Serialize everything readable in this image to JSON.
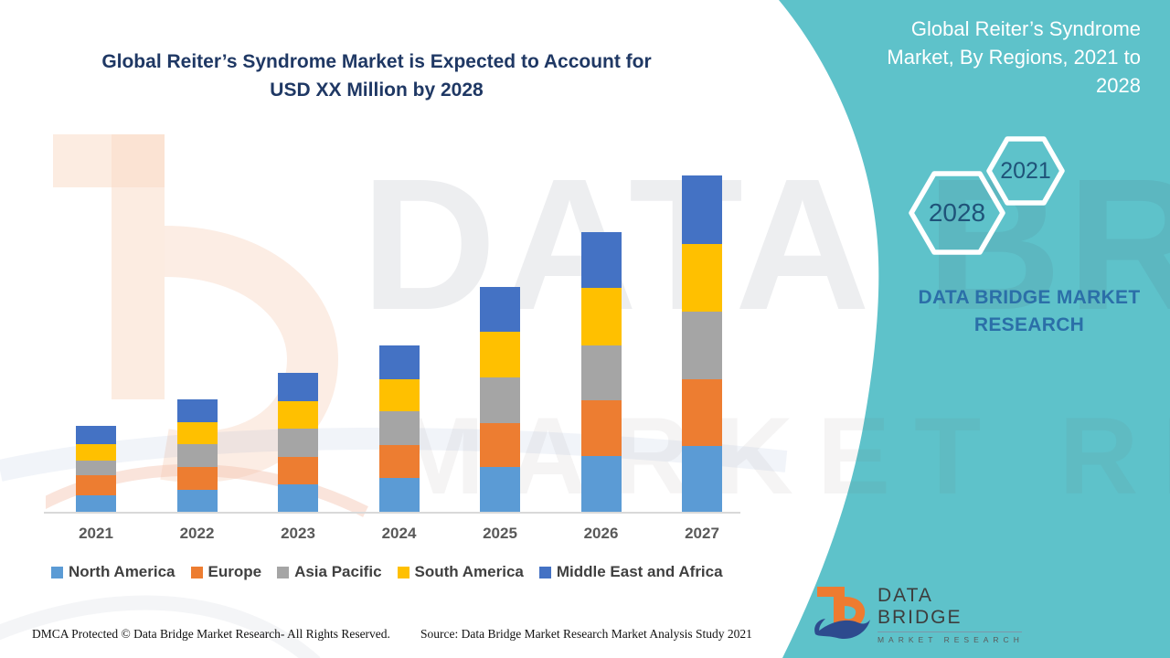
{
  "title": {
    "line1": "Global Reiter’s Syndrome Market is Expected to Account for",
    "line2": "USD XX Million by 2028"
  },
  "side_panel": {
    "heading": "Global Reiter’s Syndrome Market, By Regions, 2021 to 2028",
    "hexagons": [
      {
        "label": "2028"
      },
      {
        "label": "2021"
      }
    ],
    "caption": "DATA BRIDGE MARKET RESEARCH",
    "logo": {
      "brand": "DATA BRIDGE",
      "sub": "MARKET RESEARCH"
    }
  },
  "chart_data": {
    "type": "bar",
    "stacked": true,
    "title": "Global Reiter’s Syndrome Market, By Regions, 2021 to 2028",
    "xlabel": "",
    "ylabel": "",
    "value_unit": "USD Million (values shown as XX placeholder; heights estimated in relative units)",
    "categories": [
      "2021",
      "2022",
      "2023",
      "2024",
      "2025",
      "2026",
      "2027"
    ],
    "series": [
      {
        "name": "North America",
        "color": "#5B9BD5",
        "values": [
          19,
          25,
          31,
          38,
          50,
          62,
          73
        ]
      },
      {
        "name": "Europe",
        "color": "#ED7D31",
        "values": [
          22,
          25,
          30,
          36,
          48,
          61,
          73
        ]
      },
      {
        "name": "Asia Pacific",
        "color": "#A5A5A5",
        "values": [
          16,
          25,
          31,
          37,
          50,
          60,
          74
        ]
      },
      {
        "name": "South America",
        "color": "#FFC000",
        "values": [
          18,
          24,
          30,
          35,
          50,
          63,
          74
        ]
      },
      {
        "name": "Middle East and Africa",
        "color": "#4472C4",
        "values": [
          20,
          25,
          31,
          37,
          49,
          61,
          75
        ]
      }
    ],
    "totals": [
      95,
      124,
      153,
      183,
      247,
      307,
      369
    ],
    "ylim": [
      0,
      381
    ],
    "grid": false,
    "legend_position": "bottom"
  },
  "watermark": {
    "brand": "DATA BRIDGE",
    "sub": "MARKET RESEARCH"
  },
  "footer": {
    "left": "DMCA Protected © Data Bridge Market Research- All Rights Reserved.",
    "right": "Source: Data Bridge Market Research Market Analysis Study 2021"
  },
  "colors": {
    "teal_panel": "#5ec2ca",
    "title_navy": "#1f3864",
    "hex_year_blue": "#1f5379",
    "caption_blue": "#2b6fa8",
    "axis_label_gray": "#595959",
    "legend_text_gray": "#404040",
    "axis_line_gray": "#d9d9d9"
  }
}
